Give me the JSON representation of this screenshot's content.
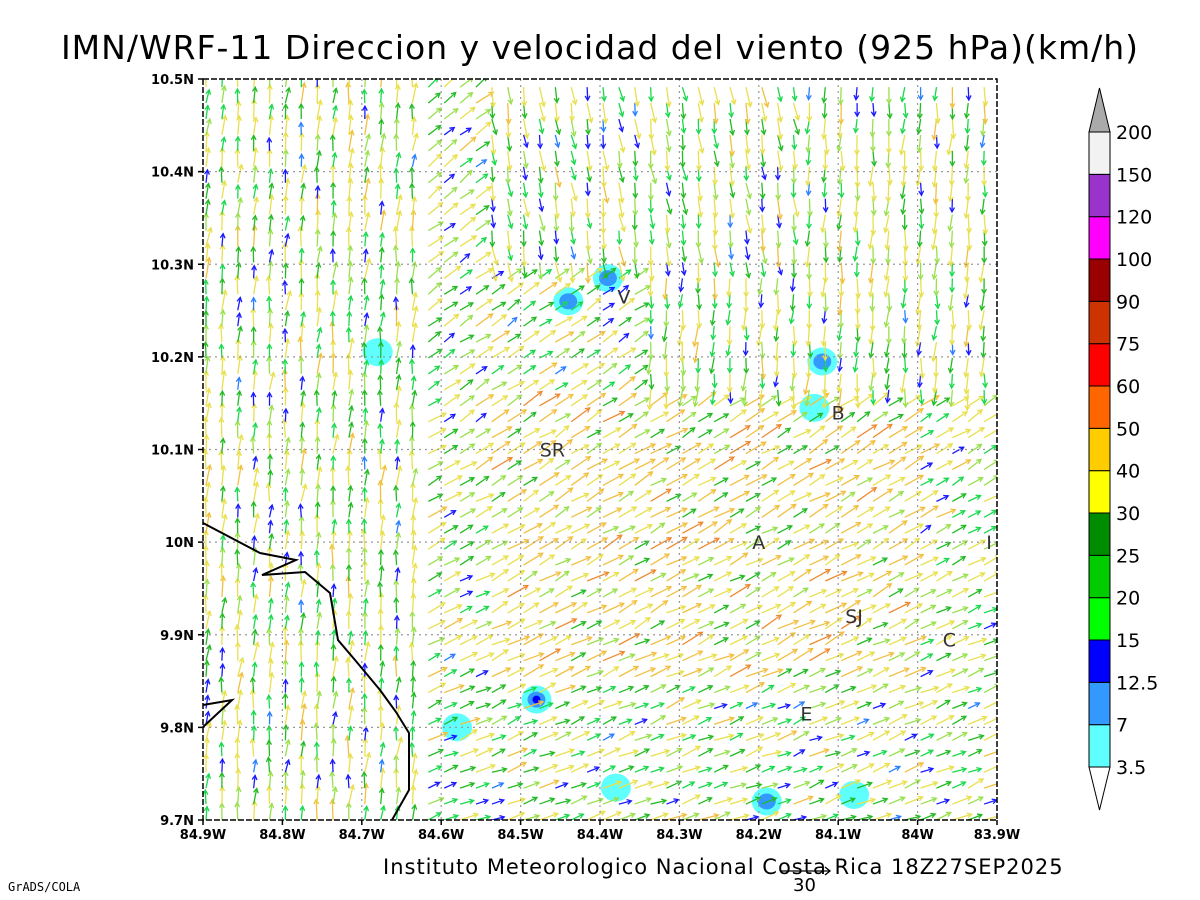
{
  "title": "IMN/WRF-11 Direccion y velocidad del viento (925 hPa)(km/h)",
  "footer": "Instituto Meteorologico Nacional Costa Rica 18Z27SEP2025",
  "credit": "GrADS/COLA",
  "reference_vector": {
    "value": 30
  },
  "map": {
    "x_ticks": [
      "84.9W",
      "84.8W",
      "84.7W",
      "84.6W",
      "84.5W",
      "84.4W",
      "84.3W",
      "84.2W",
      "84.1W",
      "84W",
      "83.9W"
    ],
    "y_ticks": [
      "10.5N",
      "10.4N",
      "10.3N",
      "10.2N",
      "10.1N",
      "10N",
      "9.9N",
      "9.8N",
      "9.7N"
    ],
    "lon_range": [
      -84.9,
      -83.9
    ],
    "lat_range": [
      9.7,
      10.5
    ],
    "grid": true,
    "cities": [
      {
        "label": "V",
        "lon": -84.37,
        "lat": 10.265
      },
      {
        "label": "B",
        "lon": -84.1,
        "lat": 10.14
      },
      {
        "label": "SR",
        "lon": -84.46,
        "lat": 10.1
      },
      {
        "label": "A",
        "lon": -84.2,
        "lat": 10.0
      },
      {
        "label": "I",
        "lon": -83.91,
        "lat": 10.0
      },
      {
        "label": "SJ",
        "lon": -84.08,
        "lat": 9.92
      },
      {
        "label": "C",
        "lon": -83.96,
        "lat": 9.895
      },
      {
        "label": "E",
        "lon": -84.14,
        "lat": 9.815
      }
    ],
    "calm_patches": [
      {
        "lon": -84.44,
        "lat": 10.26,
        "intensity": 7
      },
      {
        "lon": -84.39,
        "lat": 10.285,
        "intensity": 7
      },
      {
        "lon": -84.12,
        "lat": 10.195,
        "intensity": 7
      },
      {
        "lon": -84.13,
        "lat": 10.145,
        "intensity": 3.5
      },
      {
        "lon": -84.58,
        "lat": 9.8,
        "intensity": 3.5
      },
      {
        "lon": -84.48,
        "lat": 9.83,
        "intensity": 12.5
      },
      {
        "lon": -84.19,
        "lat": 9.72,
        "intensity": 7
      },
      {
        "lon": -84.38,
        "lat": 9.735,
        "intensity": 3.5
      },
      {
        "lon": -84.08,
        "lat": 9.727,
        "intensity": 3.5
      },
      {
        "lon": -84.68,
        "lat": 10.205,
        "intensity": 3.5
      }
    ]
  },
  "colorbar": {
    "levels": [
      "3.5",
      "7",
      "12.5",
      "15",
      "20",
      "25",
      "30",
      "40",
      "50",
      "60",
      "75",
      "90",
      "100",
      "120",
      "150",
      "200"
    ],
    "colors": [
      "#60ffff",
      "#3399ff",
      "#0000ff",
      "#00ff00",
      "#00cc00",
      "#008c00",
      "#ffff00",
      "#ffcc00",
      "#ff6600",
      "#ff0000",
      "#cc3300",
      "#990000",
      "#ff00ff",
      "#9933cc",
      "#f2f2f2",
      "#aaaaaa"
    ]
  }
}
